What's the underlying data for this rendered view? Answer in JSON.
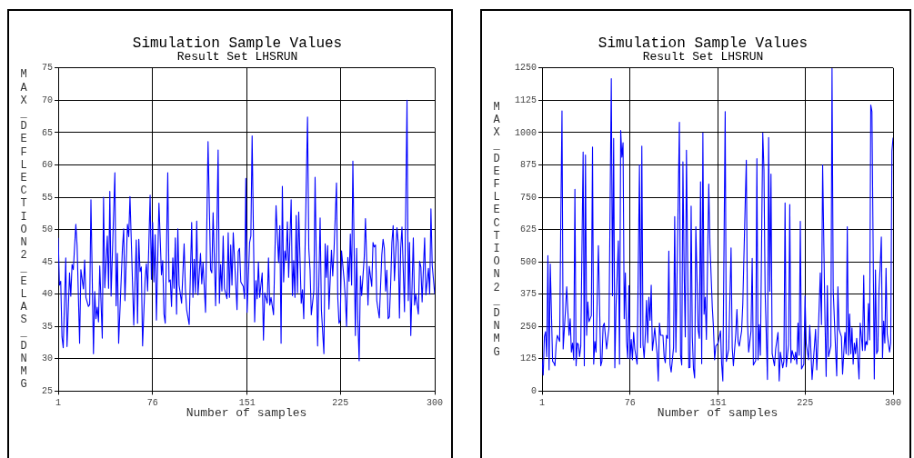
{
  "chart_data": [
    {
      "type": "line",
      "title": "Simulation Sample Values",
      "subtitle": "Result Set LHSRUN",
      "xlabel": "Number of samples",
      "ylabel": "MAX_DEFLECTION2_ELAS_DNMG",
      "color": "#0000ff",
      "xlim": [
        1,
        300
      ],
      "xticks": [
        1,
        76,
        151,
        225,
        300
      ],
      "ylim": [
        25,
        75
      ],
      "yticks": [
        25,
        30,
        35,
        40,
        45,
        50,
        55,
        60,
        65,
        70,
        75
      ],
      "grid": true,
      "x": [
        1,
        2,
        3,
        4,
        5,
        7,
        8,
        10,
        11,
        12,
        13,
        15,
        16,
        18,
        19,
        21,
        22,
        23,
        25,
        26,
        27,
        29,
        30,
        31,
        32,
        33,
        34,
        36,
        37,
        38,
        40,
        41,
        42,
        43,
        46,
        47,
        48,
        49,
        52,
        53,
        54,
        56,
        57,
        58,
        61,
        63,
        64,
        65,
        66,
        67,
        68,
        70,
        71,
        72,
        74,
        75,
        76,
        77,
        78,
        79,
        81,
        83,
        84,
        85,
        86,
        88,
        89,
        90,
        91,
        92,
        93,
        94,
        95,
        96,
        97,
        99,
        101,
        102,
        103,
        105,
        107,
        108,
        109,
        110,
        111,
        112,
        114,
        115,
        116,
        118,
        120,
        122,
        123,
        124,
        126,
        128,
        129,
        130,
        131,
        132,
        133,
        135,
        136,
        137,
        138,
        139,
        140,
        143,
        144,
        145,
        146,
        148,
        149,
        150,
        151,
        153,
        154,
        155,
        157,
        158,
        159,
        160,
        161,
        163,
        164,
        165,
        167,
        168,
        169,
        170,
        172,
        173,
        174,
        176,
        177,
        178,
        179,
        180,
        181,
        182,
        183,
        184,
        186,
        187,
        188,
        189,
        190,
        191,
        192,
        194,
        195,
        196,
        199,
        200,
        201,
        202,
        204,
        205,
        207,
        209,
        210,
        212,
        213,
        214,
        215,
        216,
        218,
        219,
        220,
        222,
        223,
        224,
        225,
        226,
        228,
        229,
        230,
        231,
        232,
        233,
        234,
        235,
        237,
        238,
        239,
        240,
        241,
        242,
        244,
        245,
        247,
        248,
        250,
        251,
        252,
        253,
        254,
        256,
        258,
        259,
        260,
        261,
        262,
        263,
        264,
        265,
        266,
        267,
        268,
        270,
        271,
        272,
        273,
        274,
        276,
        278,
        279,
        280,
        281,
        283,
        284,
        285,
        287,
        288,
        289,
        290,
        292,
        293,
        295,
        296,
        297,
        298,
        300
      ],
      "values": [
        48.7,
        41.4,
        42,
        33.4,
        31.7,
        45.6,
        31.9,
        43.3,
        39.7,
        44.6,
        43.8,
        50.8,
        47.5,
        32.4,
        43.8,
        40.8,
        45.3,
        39.5,
        38.1,
        38.4,
        54.6,
        30.8,
        40.4,
        36.2,
        38,
        35.7,
        44.4,
        33.2,
        55,
        41,
        49,
        40.9,
        55.9,
        39.7,
        58.8,
        38.2,
        46.3,
        32.4,
        47.1,
        50.1,
        39,
        50.8,
        48.9,
        55.1,
        35.2,
        48.4,
        35.5,
        48.5,
        43.5,
        44.2,
        32,
        42.3,
        44.7,
        40.5,
        55.3,
        42.3,
        51.1,
        41.9,
        49.2,
        36,
        54.1,
        43,
        45.2,
        36.9,
        35.5,
        58.8,
        41.9,
        42.2,
        38.1,
        45.6,
        40.9,
        48.7,
        36.9,
        50.1,
        41.4,
        38.6,
        47.8,
        40.9,
        37.6,
        35.3,
        51.1,
        39.5,
        45.4,
        40.2,
        51.3,
        39.9,
        46.3,
        41.6,
        44.9,
        37.2,
        63.6,
        43.8,
        43.3,
        52.6,
        38.2,
        62.3,
        38.6,
        44.6,
        40.5,
        49,
        40.9,
        39.3,
        49.5,
        39.5,
        47.6,
        41.4,
        49.5,
        37.6,
        46.6,
        47.1,
        41.9,
        41.2,
        39.3,
        57.9,
        37.2,
        48,
        49,
        64.5,
        35.7,
        42.1,
        39.3,
        45,
        39.5,
        43.3,
        32.9,
        40.2,
        38.6,
        45.6,
        38.3,
        39.5,
        36.8,
        45.6,
        53.7,
        44.9,
        50.6,
        32.4,
        56.7,
        41.9,
        46.7,
        45.2,
        51.2,
        42.6,
        54.6,
        39.8,
        45.2,
        39.5,
        52.2,
        40.2,
        52.7,
        38.6,
        40.7,
        36.2,
        67.4,
        47.1,
        43.8,
        36.8,
        40.5,
        58.1,
        32,
        51.8,
        37.6,
        30.8,
        47.8,
        42.6,
        47.5,
        37.7,
        46.8,
        42.8,
        46.6,
        57.2,
        39.5,
        35.5,
        36,
        46.7,
        42.3,
        39.5,
        35,
        45.7,
        42,
        49.3,
        41.4,
        60.6,
        33.6,
        47.1,
        35.7,
        29.7,
        42.8,
        39.8,
        45.6,
        51.7,
        38.3,
        44.3,
        41.2,
        48,
        47.3,
        47.6,
        39,
        36.3,
        46.1,
        48.5,
        47.1,
        40.5,
        43.7,
        36.2,
        36.5,
        41.4,
        48,
        50.6,
        42.1,
        50.3,
        48,
        36.3,
        47.1,
        50.4,
        37.3,
        70,
        39,
        48,
        33.6,
        48.7,
        38.3,
        40,
        36.9,
        45.1,
        44.2,
        38.8,
        48.7,
        39.9,
        44,
        40,
        53.2,
        44.5,
        40
      ]
    },
    {
      "type": "line",
      "title": "Simulation Sample Values",
      "subtitle": "Result Set LHSRUN",
      "xlabel": "Number of samples",
      "ylabel": "MAX_DEFLECTION2_DNMG",
      "color": "#0000ff",
      "xlim": [
        1,
        300
      ],
      "xticks": [
        1,
        76,
        151,
        225,
        300
      ],
      "ylim": [
        0,
        1250
      ],
      "yticks": [
        0,
        125,
        250,
        375,
        500,
        625,
        750,
        875,
        1000,
        1125,
        1250
      ],
      "grid": true,
      "x": [
        1,
        2,
        3,
        4,
        5,
        6,
        7,
        8,
        10,
        11,
        12,
        13,
        14,
        16,
        17,
        18,
        19,
        21,
        22,
        24,
        25,
        26,
        27,
        28,
        29,
        30,
        31,
        32,
        33,
        34,
        36,
        37,
        38,
        39,
        40,
        41,
        43,
        44,
        45,
        46,
        47,
        49,
        51,
        52,
        53,
        54,
        56,
        58,
        60,
        61,
        62,
        63,
        64,
        66,
        67,
        68,
        69,
        70,
        71,
        72,
        73,
        74,
        75,
        76,
        77,
        78,
        79,
        80,
        82,
        84,
        85,
        86,
        87,
        88,
        89,
        90,
        91,
        92,
        93,
        94,
        95,
        96,
        97,
        98,
        99,
        100,
        101,
        102,
        104,
        105,
        106,
        107,
        108,
        109,
        110,
        111,
        113,
        114,
        115,
        118,
        119,
        120,
        121,
        122,
        123,
        124,
        126,
        127,
        128,
        129,
        130,
        131,
        132,
        134,
        135,
        136,
        137,
        138,
        139,
        140,
        141,
        143,
        144,
        146,
        147,
        148,
        149,
        151,
        153,
        154,
        155,
        157,
        158,
        160,
        162,
        163,
        164,
        166,
        167,
        168,
        169,
        171,
        172,
        174,
        175,
        176,
        177,
        179,
        180,
        181,
        183,
        184,
        185,
        186,
        187,
        189,
        190,
        191,
        193,
        194,
        195,
        196,
        197,
        199,
        200,
        202,
        203,
        204,
        206,
        207,
        208,
        209,
        211,
        212,
        213,
        214,
        216,
        217,
        218,
        219,
        220,
        221,
        222,
        224,
        225,
        226,
        228,
        229,
        230,
        231,
        233,
        234,
        235,
        236,
        238,
        239,
        240,
        242,
        243,
        244,
        245,
        247,
        248,
        249,
        251,
        252,
        253,
        254,
        256,
        257,
        259,
        260,
        261,
        262,
        263,
        264,
        265,
        266,
        267,
        268,
        269,
        270,
        271,
        272,
        274,
        275,
        276,
        277,
        278,
        279,
        280,
        281,
        282,
        284,
        285,
        286,
        287,
        288,
        289,
        290,
        291,
        292,
        293,
        294,
        295,
        297,
        298,
        299,
        300
      ],
      "values": [
        121,
        62,
        210,
        230,
        133,
        524,
        82,
        492,
        115,
        110,
        98,
        180,
        216,
        192,
        669,
        1084,
        163,
        316,
        404,
        216,
        280,
        151,
        186,
        121,
        781,
        98,
        186,
        180,
        133,
        174,
        925,
        98,
        913,
        216,
        345,
        269,
        292,
        944,
        104,
        192,
        151,
        563,
        98,
        115,
        251,
        263,
        163,
        245,
        1209,
        369,
        978,
        90,
        322,
        581,
        104,
        1008,
        905,
        961,
        280,
        457,
        192,
        127,
        408,
        125,
        200,
        121,
        227,
        163,
        104,
        875,
        168,
        948,
        180,
        127,
        221,
        351,
        188,
        363,
        274,
        410,
        157,
        198,
        245,
        192,
        145,
        39,
        263,
        216,
        216,
        133,
        110,
        216,
        204,
        542,
        104,
        74,
        168,
        675,
        151,
        1040,
        139,
        101,
        887,
        475,
        210,
        932,
        90,
        92,
        716,
        210,
        86,
        51,
        636,
        236,
        204,
        810,
        106,
        999,
        298,
        363,
        200,
        801,
        569,
        327,
        247,
        121,
        174,
        186,
        233,
        104,
        39,
        1081,
        115,
        163,
        554,
        168,
        98,
        221,
        316,
        192,
        174,
        233,
        339,
        716,
        893,
        269,
        151,
        233,
        514,
        101,
        118,
        899,
        121,
        257,
        139,
        999,
        858,
        386,
        45,
        981,
        386,
        840,
        145,
        98,
        163,
        227,
        39,
        151,
        90,
        115,
        728,
        94,
        180,
        722,
        110,
        157,
        121,
        151,
        104,
        263,
        139,
        657,
        86,
        104,
        369,
        186,
        121,
        254,
        157,
        45,
        174,
        239,
        82,
        186,
        457,
        257,
        875,
        274,
        57,
        408,
        133,
        174,
        1248,
        392,
        163,
        59,
        404,
        239,
        210,
        66,
        227,
        145,
        636,
        139,
        298,
        145,
        245,
        104,
        186,
        145,
        204,
        127,
        47,
        263,
        157,
        448,
        157,
        192,
        180,
        339,
        198,
        1107,
        1081,
        47,
        469,
        145,
        157,
        392,
        481,
        596,
        127,
        271,
        186,
        475,
        221,
        151,
        186,
        928,
        980
      ]
    }
  ]
}
